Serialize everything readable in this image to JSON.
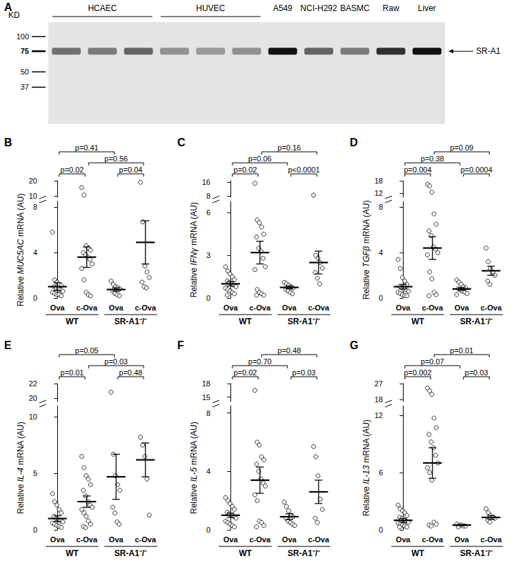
{
  "blot": {
    "panel": "A",
    "unit": "KD",
    "markers": [
      100,
      75,
      50,
      37
    ],
    "groups": [
      {
        "label": "HCAEC",
        "lanes": 3
      },
      {
        "label": "HUVEC",
        "lanes": 3
      },
      {
        "label": "A549",
        "lanes": 1
      },
      {
        "label": "NCI-H292",
        "lanes": 1
      },
      {
        "label": "BASMC",
        "lanes": 1
      },
      {
        "label": "Raw",
        "lanes": 1
      },
      {
        "label": "Liver",
        "lanes": 1
      }
    ],
    "band_intensity": [
      0.55,
      0.5,
      0.6,
      0.4,
      0.35,
      0.4,
      1,
      0.6,
      0.5,
      0.85,
      1
    ],
    "band_label": "SR-A1"
  },
  "chart_data": [
    {
      "type": "scatter",
      "panel": "B",
      "ylabel": "Relative MUC5AC mRNA (AU)",
      "categories": [
        "Ova",
        "c-Ova",
        "Ova",
        "c-Ova"
      ],
      "groups": [
        "WT",
        "SR-A1⁻/⁻"
      ],
      "ylim": [
        0,
        20
      ],
      "yticks": [
        0,
        4,
        8,
        10,
        20
      ],
      "ybreak": [
        8.5,
        9
      ],
      "points": [
        [
          5.8,
          1.6,
          1.4,
          1.2,
          1.1,
          1.0,
          0.9,
          0.8,
          0.7,
          0.6,
          0.5,
          0.4,
          0.3,
          0.3,
          0.2
        ],
        [
          15.5,
          10.5,
          4.6,
          4.4,
          4.2,
          4.0,
          3.8,
          3.6,
          3.4,
          3.0,
          2.6,
          1.6,
          0.5,
          0.3,
          0.2
        ],
        [
          1.5,
          1.2,
          1.0,
          0.9,
          0.8,
          0.6,
          0.4,
          0.3,
          0.2
        ],
        [
          19,
          6.7,
          2.8,
          2.3,
          1.8,
          1.4,
          1.0,
          0.9
        ]
      ],
      "mean": [
        1.0,
        3.6,
        0.75,
        4.9
      ],
      "error": [
        0.35,
        0.9,
        0.15,
        1.9
      ],
      "comparisons": [
        {
          "pair": [
            1,
            3
          ],
          "label": "p=0.56"
        },
        {
          "pair": [
            0,
            2
          ],
          "label": "p=0.41"
        },
        {
          "pair": [
            2,
            3
          ],
          "label": "p=0.04"
        },
        {
          "pair": [
            0,
            1
          ],
          "label": "p=0.02"
        }
      ]
    },
    {
      "type": "scatter",
      "panel": "C",
      "ylabel": "Relative IFNγ mRNA (AU)",
      "categories": [
        "Ova",
        "c-Ova",
        "Ova",
        "c-Ova"
      ],
      "groups": [
        "WT",
        "SR-A1⁻/⁻"
      ],
      "ylim": [
        0,
        17
      ],
      "yticks": [
        0,
        3,
        6,
        8,
        16
      ],
      "ybreak": [
        6.8,
        7.2
      ],
      "points": [
        [
          2.2,
          1.9,
          1.7,
          1.5,
          1.3,
          1.2,
          1.1,
          1.0,
          0.9,
          0.8,
          0.7,
          0.6,
          0.5,
          0.4,
          0.3,
          0.2
        ],
        [
          15.5,
          5.5,
          5.3,
          5.0,
          4.5,
          4.3,
          3.5,
          3.3,
          2.8,
          2.2,
          2.0,
          0.6,
          0.4,
          0.3,
          0.2,
          0.2
        ],
        [
          1.1,
          1.0,
          0.9,
          0.8,
          0.7,
          0.6,
          0.5,
          0.4,
          0.3
        ],
        [
          8.5,
          3.0,
          2.8,
          2.5,
          2.1,
          1.8,
          1.4,
          1.0
        ]
      ],
      "mean": [
        1.0,
        3.2,
        0.75,
        2.5
      ],
      "error": [
        0.15,
        0.8,
        0.1,
        0.8
      ],
      "comparisons": [
        {
          "pair": [
            0,
            2
          ],
          "label": "p=0.06"
        },
        {
          "pair": [
            0,
            1
          ],
          "label": "p=0.02"
        },
        {
          "pair": [
            1,
            3
          ],
          "label": "p=0.16"
        },
        {
          "pair": [
            2,
            3
          ],
          "label": "p<0.0001"
        }
      ]
    },
    {
      "type": "scatter",
      "panel": "D",
      "ylabel": "Relative TGFβ mRNA (AU)",
      "categories": [
        "Ova",
        "c-Ova",
        "Ova",
        "c-Ova"
      ],
      "groups": [
        "WT",
        "SR-A1⁻/⁻"
      ],
      "ylim": [
        0,
        18
      ],
      "yticks": [
        0,
        4,
        8,
        12,
        18
      ],
      "ybreak": [
        8.5,
        10
      ],
      "points": [
        [
          3.4,
          2.6,
          1.8,
          1.5,
          1.2,
          1.0,
          0.9,
          0.8,
          0.7,
          0.6,
          0.5,
          0.4,
          0.3,
          0.2,
          0.2
        ],
        [
          16.3,
          15.5,
          12.5,
          7.4,
          6.5,
          5.9,
          5.5,
          4.5,
          4.3,
          4.0,
          3.8,
          2.3,
          1.7,
          0.5,
          0.3,
          0.2
        ],
        [
          1.6,
          1.4,
          1.2,
          1.0,
          0.9,
          0.8,
          0.7,
          0.6,
          0.5,
          0.4,
          0.3
        ],
        [
          4.4,
          3.2,
          2.6,
          2.3,
          2.0,
          1.5,
          1.2
        ]
      ],
      "mean": [
        1.0,
        4.4,
        0.8,
        2.4
      ],
      "error": [
        0.2,
        1.0,
        0.12,
        0.4
      ],
      "comparisons": [
        {
          "pair": [
            0,
            2
          ],
          "label": "p=0.38"
        },
        {
          "pair": [
            0,
            1
          ],
          "label": "p=0.004"
        },
        {
          "pair": [
            1,
            3
          ],
          "label": "p=0.09"
        },
        {
          "pair": [
            2,
            3
          ],
          "label": "p=0.0004"
        }
      ]
    },
    {
      "type": "scatter",
      "panel": "E",
      "ylabel": "Relative IL-4 mRNA (AU)",
      "categories": [
        "Ova",
        "c-Ova",
        "Ova",
        "c-Ova"
      ],
      "groups": [
        "WT",
        "SR-A1⁻/⁻"
      ],
      "ylim": [
        0,
        22
      ],
      "yticks": [
        0,
        5,
        10,
        20,
        22
      ],
      "ybreak": [
        11,
        19.5
      ],
      "points": [
        [
          3.2,
          2.5,
          2.2,
          1.8,
          1.5,
          1.2,
          1.0,
          0.9,
          0.8,
          0.7,
          0.6,
          0.5,
          0.4,
          0.3,
          0.2
        ],
        [
          6.5,
          5.5,
          4.8,
          4.5,
          4.0,
          3.5,
          3.0,
          2.5,
          2.2,
          2.0,
          1.8,
          1.5,
          1.2,
          0.8,
          0.5,
          0.3,
          0.2
        ],
        [
          20.8,
          6.7,
          4.8,
          4.0,
          3.5,
          2.0,
          1.5,
          0.7,
          0.5
        ],
        [
          8.2,
          7.5,
          6.5,
          4.5,
          1.3
        ]
      ],
      "mean": [
        1.0,
        2.5,
        4.7,
        6.2
      ],
      "error": [
        0.25,
        0.5,
        2.0,
        1.5
      ],
      "comparisons": [
        {
          "pair": [
            1,
            3
          ],
          "label": "p=0.03"
        },
        {
          "pair": [
            0,
            2
          ],
          "label": "p=0.05"
        },
        {
          "pair": [
            2,
            3
          ],
          "label": "p=0.48"
        },
        {
          "pair": [
            0,
            1
          ],
          "label": "p=0.01"
        }
      ]
    },
    {
      "type": "scatter",
      "panel": "F",
      "ylabel": "Relative IL-5 mRNA (AU)",
      "categories": [
        "Ova",
        "c-Ova",
        "Ova",
        "c-Ova"
      ],
      "groups": [
        "WT",
        "SR-A1⁻/⁻"
      ],
      "ylim": [
        0,
        18
      ],
      "yticks": [
        0,
        4,
        8,
        15,
        18
      ],
      "ybreak": [
        8.5,
        14
      ],
      "points": [
        [
          2.2,
          2.0,
          1.8,
          1.6,
          1.4,
          1.2,
          1.1,
          1.0,
          0.9,
          0.8,
          0.6,
          0.5,
          0.4,
          0.3,
          0.2
        ],
        [
          16.5,
          6.0,
          5.8,
          5.0,
          4.8,
          4.5,
          4.0,
          3.5,
          3.2,
          3.0,
          2.4,
          2.0,
          0.6,
          0.5,
          0.3,
          0.2
        ],
        [
          1.9,
          1.6,
          1.3,
          1.0,
          0.9,
          0.8,
          0.6,
          0.5,
          0.4,
          0.3
        ],
        [
          5.7,
          5.0,
          3.7,
          2.1,
          1.4,
          0.8,
          0.5
        ]
      ],
      "mean": [
        1.0,
        3.4,
        0.9,
        2.6
      ],
      "error": [
        0.15,
        0.9,
        0.2,
        0.8
      ],
      "comparisons": [
        {
          "pair": [
            0,
            2
          ],
          "label": "p=0.70"
        },
        {
          "pair": [
            0,
            1
          ],
          "label": "p=0.02"
        },
        {
          "pair": [
            1,
            3
          ],
          "label": "p=0.48"
        },
        {
          "pair": [
            2,
            3
          ],
          "label": "p=0.03"
        }
      ]
    },
    {
      "type": "scatter",
      "panel": "G",
      "ylabel": "Relative IL-13 mRNA (AU)",
      "categories": [
        "Ova",
        "c-Ova",
        "Ova",
        "c-Ova"
      ],
      "groups": [
        "WT",
        "SR-A1⁻/⁻"
      ],
      "ylim": [
        0,
        27
      ],
      "yticks": [
        0,
        6,
        12,
        18,
        27
      ],
      "ybreak": [
        13,
        17
      ],
      "points": [
        [
          2.6,
          2.2,
          2.0,
          1.8,
          1.5,
          1.3,
          1.2,
          1.0,
          0.9,
          0.8,
          0.7,
          0.6,
          0.5,
          0.4,
          0.3,
          0.3
        ],
        [
          24.5,
          23.0,
          21.0,
          11.7,
          10.7,
          10.0,
          9.2,
          8.6,
          7.8,
          7.0,
          6.5,
          6.0,
          5.2,
          0.8,
          0.6,
          0.5,
          0.4
        ],
        [
          0.6,
          0.5,
          0.5,
          0.4,
          0.4,
          0.3
        ],
        [
          2.2,
          1.8,
          1.5,
          1.3,
          1.2,
          1.0,
          0.8
        ]
      ],
      "mean": [
        1.0,
        7.0,
        0.5,
        1.3
      ],
      "error": [
        0.2,
        1.6,
        0.05,
        0.2
      ],
      "comparisons": [
        {
          "pair": [
            0,
            2
          ],
          "label": "p=0.07"
        },
        {
          "pair": [
            0,
            1
          ],
          "label": "p=0.002"
        },
        {
          "pair": [
            1,
            3
          ],
          "label": "p=0.01"
        },
        {
          "pair": [
            2,
            3
          ],
          "label": "p=0.03"
        }
      ]
    }
  ]
}
